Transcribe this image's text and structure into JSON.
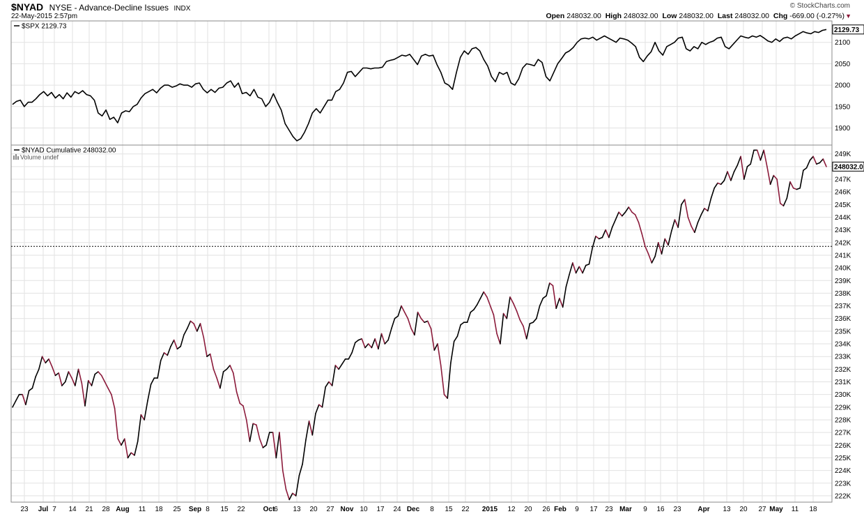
{
  "header": {
    "ticker": "$NYAD",
    "description": "NYSE - Advance-Decline Issues",
    "exchange": "INDX",
    "date": "22-May-2015 2:57pm",
    "credit": "© StockCharts.com",
    "open_label": "Open",
    "open": "248032.00",
    "high_label": "High",
    "high": "248032.00",
    "low_label": "Low",
    "low": "248032.00",
    "last_label": "Last",
    "last": "248032.00",
    "chg_label": "Chg",
    "chg": "-669.00 (-0.27%)",
    "chg_arrow": "▼"
  },
  "colors": {
    "up": "#000000",
    "down": "#8b1a3a",
    "grid": "#e2e2e2",
    "frame": "#888888"
  },
  "chart_data": [
    {
      "type": "line",
      "legend": "$SPX 2129.73",
      "last_value": "2129.73",
      "ylim": [
        1860,
        2150
      ],
      "y_ticks": [
        1900,
        1950,
        2000,
        2050,
        2100
      ],
      "y_tick_labels": [
        "1900",
        "1950",
        "2000",
        "2050",
        "2100"
      ],
      "values": [
        1955,
        1962,
        1965,
        1950,
        1960,
        1960,
        1968,
        1978,
        1985,
        1975,
        1983,
        1970,
        1978,
        1968,
        1982,
        1972,
        1985,
        1980,
        1987,
        1978,
        1975,
        1965,
        1935,
        1928,
        1942,
        1920,
        1925,
        1912,
        1935,
        1940,
        1938,
        1950,
        1955,
        1970,
        1980,
        1985,
        1990,
        1982,
        1993,
        2000,
        2000,
        1995,
        1998,
        2003,
        2000,
        2000,
        1995,
        2003,
        2005,
        1990,
        1982,
        1990,
        1983,
        1993,
        1995,
        2005,
        2010,
        1995,
        2005,
        1980,
        1983,
        1975,
        1990,
        1972,
        1968,
        1950,
        1960,
        1980,
        1960,
        1942,
        1910,
        1895,
        1880,
        1870,
        1875,
        1890,
        1910,
        1935,
        1945,
        1935,
        1950,
        1965,
        1965,
        1985,
        1990,
        2005,
        2030,
        2032,
        2020,
        2030,
        2040,
        2040,
        2038,
        2040,
        2040,
        2042,
        2055,
        2058,
        2060,
        2065,
        2070,
        2068,
        2072,
        2060,
        2048,
        2068,
        2072,
        2068,
        2070,
        2048,
        2030,
        2005,
        2000,
        1990,
        2030,
        2065,
        2080,
        2072,
        2085,
        2088,
        2080,
        2060,
        2045,
        2020,
        2008,
        2030,
        2025,
        2030,
        2005,
        2000,
        2015,
        2040,
        2050,
        2048,
        2045,
        2060,
        2053,
        2020,
        2010,
        2030,
        2050,
        2062,
        2075,
        2080,
        2088,
        2100,
        2108,
        2110,
        2108,
        2112,
        2105,
        2110,
        2115,
        2110,
        2105,
        2100,
        2110,
        2108,
        2105,
        2098,
        2090,
        2065,
        2055,
        2068,
        2078,
        2100,
        2080,
        2070,
        2090,
        2095,
        2100,
        2110,
        2112,
        2085,
        2080,
        2090,
        2085,
        2100,
        2095,
        2100,
        2103,
        2110,
        2112,
        2090,
        2085,
        2095,
        2105,
        2115,
        2112,
        2110,
        2115,
        2112,
        2116,
        2110,
        2103,
        2100,
        2108,
        2102,
        2110,
        2112,
        2108,
        2115,
        2120,
        2125,
        2122,
        2120,
        2125,
        2123,
        2128,
        2130
      ]
    },
    {
      "type": "line",
      "legend": "$NYAD Cumulative 248032.00",
      "volume_label": "Volume undef",
      "last_value": "248032.0",
      "reference_line": 241700,
      "ylim": [
        221500,
        249700
      ],
      "y_ticks": [
        222000,
        223000,
        224000,
        225000,
        226000,
        227000,
        228000,
        229000,
        230000,
        231000,
        232000,
        233000,
        234000,
        235000,
        236000,
        237000,
        238000,
        239000,
        240000,
        241000,
        242000,
        243000,
        244000,
        245000,
        246000,
        247000,
        248000,
        249000
      ],
      "y_tick_labels": [
        "222K",
        "223K",
        "224K",
        "225K",
        "226K",
        "227K",
        "228K",
        "229K",
        "230K",
        "231K",
        "232K",
        "233K",
        "234K",
        "235K",
        "236K",
        "237K",
        "238K",
        "239K",
        "240K",
        "241K",
        "242K",
        "243K",
        "244K",
        "245K",
        "246K",
        "247K",
        "248K",
        "249K"
      ],
      "values": [
        229000,
        229500,
        230000,
        230000,
        229200,
        230300,
        230500,
        231400,
        232000,
        233000,
        232500,
        232800,
        232200,
        231500,
        231700,
        230700,
        231000,
        231800,
        231300,
        230700,
        232000,
        230900,
        229100,
        231100,
        230700,
        231600,
        231800,
        231500,
        231000,
        230500,
        230000,
        228900,
        226500,
        226000,
        226500,
        225000,
        225400,
        225200,
        226300,
        228400,
        228000,
        229500,
        230800,
        231300,
        231300,
        232700,
        233300,
        233100,
        233800,
        234300,
        233600,
        233800,
        234700,
        235200,
        235800,
        235600,
        235000,
        235600,
        234500,
        233000,
        233200,
        232000,
        231300,
        230500,
        231800,
        232000,
        232300,
        231700,
        230200,
        229300,
        229100,
        228000,
        226300,
        227700,
        227600,
        226500,
        225800,
        226000,
        227000,
        227000,
        225000,
        227000,
        224000,
        222500,
        221700,
        222200,
        222000,
        223600,
        224500,
        226400,
        227900,
        226800,
        228500,
        229200,
        229000,
        230600,
        231000,
        230700,
        232300,
        232000,
        232400,
        232800,
        232800,
        233300,
        234100,
        234300,
        234400,
        233700,
        234000,
        233700,
        234400,
        233600,
        234800,
        234000,
        234300,
        235200,
        236000,
        236200,
        237000,
        236500,
        236000,
        235200,
        234700,
        236500,
        236000,
        235700,
        235800,
        235200,
        233500,
        234000,
        232300,
        230000,
        229700,
        232500,
        234200,
        234600,
        235500,
        235700,
        235700,
        236500,
        236700,
        237100,
        237600,
        238100,
        237700,
        237000,
        236300,
        234800,
        234000,
        236400,
        236000,
        237700,
        237200,
        236600,
        235900,
        235400,
        234400,
        235600,
        235700,
        236000,
        237000,
        237600,
        237800,
        238800,
        238600,
        236800,
        237600,
        236900,
        238500,
        239500,
        240400,
        239600,
        240100,
        239600,
        240200,
        240300,
        241600,
        242500,
        242300,
        242400,
        243000,
        242400,
        243200,
        243800,
        244400,
        244100,
        244400,
        244800,
        244400,
        244200,
        243600,
        242700,
        241700,
        241100,
        240400,
        240900,
        242000,
        241100,
        242300,
        241800,
        242900,
        243800,
        243200,
        245000,
        245400,
        244000,
        243300,
        242800,
        243600,
        244200,
        244700,
        244500,
        245500,
        246300,
        246700,
        246600,
        246900,
        247600,
        246900,
        247600,
        248100,
        248800,
        247000,
        248000,
        248200,
        249300,
        249300,
        248500,
        249300,
        248000,
        246600,
        247300,
        247000,
        245100,
        244900,
        245500,
        246800,
        246300,
        246200,
        246300,
        247700,
        247900,
        248500,
        248800,
        248200,
        248300,
        248600,
        248000
      ]
    }
  ],
  "x_axis": {
    "labels": [
      "23",
      "Jul",
      "7",
      "14",
      "21",
      "28",
      "Aug",
      "11",
      "18",
      "25",
      "Sep",
      "8",
      "15",
      "22",
      "Oct",
      "6",
      "13",
      "20",
      "27",
      "Nov",
      "10",
      "17",
      "24",
      "Dec",
      "8",
      "15",
      "22",
      "2015",
      "12",
      "20",
      "26",
      "Feb",
      "9",
      "17",
      "23",
      "Mar",
      "9",
      "16",
      "23",
      "Apr",
      "13",
      "20",
      "27",
      "May",
      "11",
      "18"
    ],
    "bold": [
      false,
      true,
      false,
      false,
      false,
      false,
      true,
      false,
      false,
      false,
      true,
      false,
      false,
      false,
      true,
      false,
      false,
      false,
      false,
      true,
      false,
      false,
      false,
      true,
      false,
      false,
      false,
      true,
      false,
      false,
      false,
      true,
      false,
      false,
      false,
      true,
      false,
      false,
      false,
      true,
      false,
      false,
      false,
      true,
      false,
      false
    ],
    "positions": [
      35,
      62,
      78,
      104,
      128,
      152,
      176,
      204,
      228,
      254,
      280,
      298,
      322,
      346,
      386,
      396,
      426,
      450,
      474,
      498,
      522,
      546,
      570,
      593,
      620,
      644,
      668,
      703,
      734,
      758,
      784,
      804,
      828,
      852,
      874,
      898,
      926,
      948,
      972,
      1010,
      1043,
      1067,
      1094,
      1114,
      1141,
      1167
    ]
  }
}
